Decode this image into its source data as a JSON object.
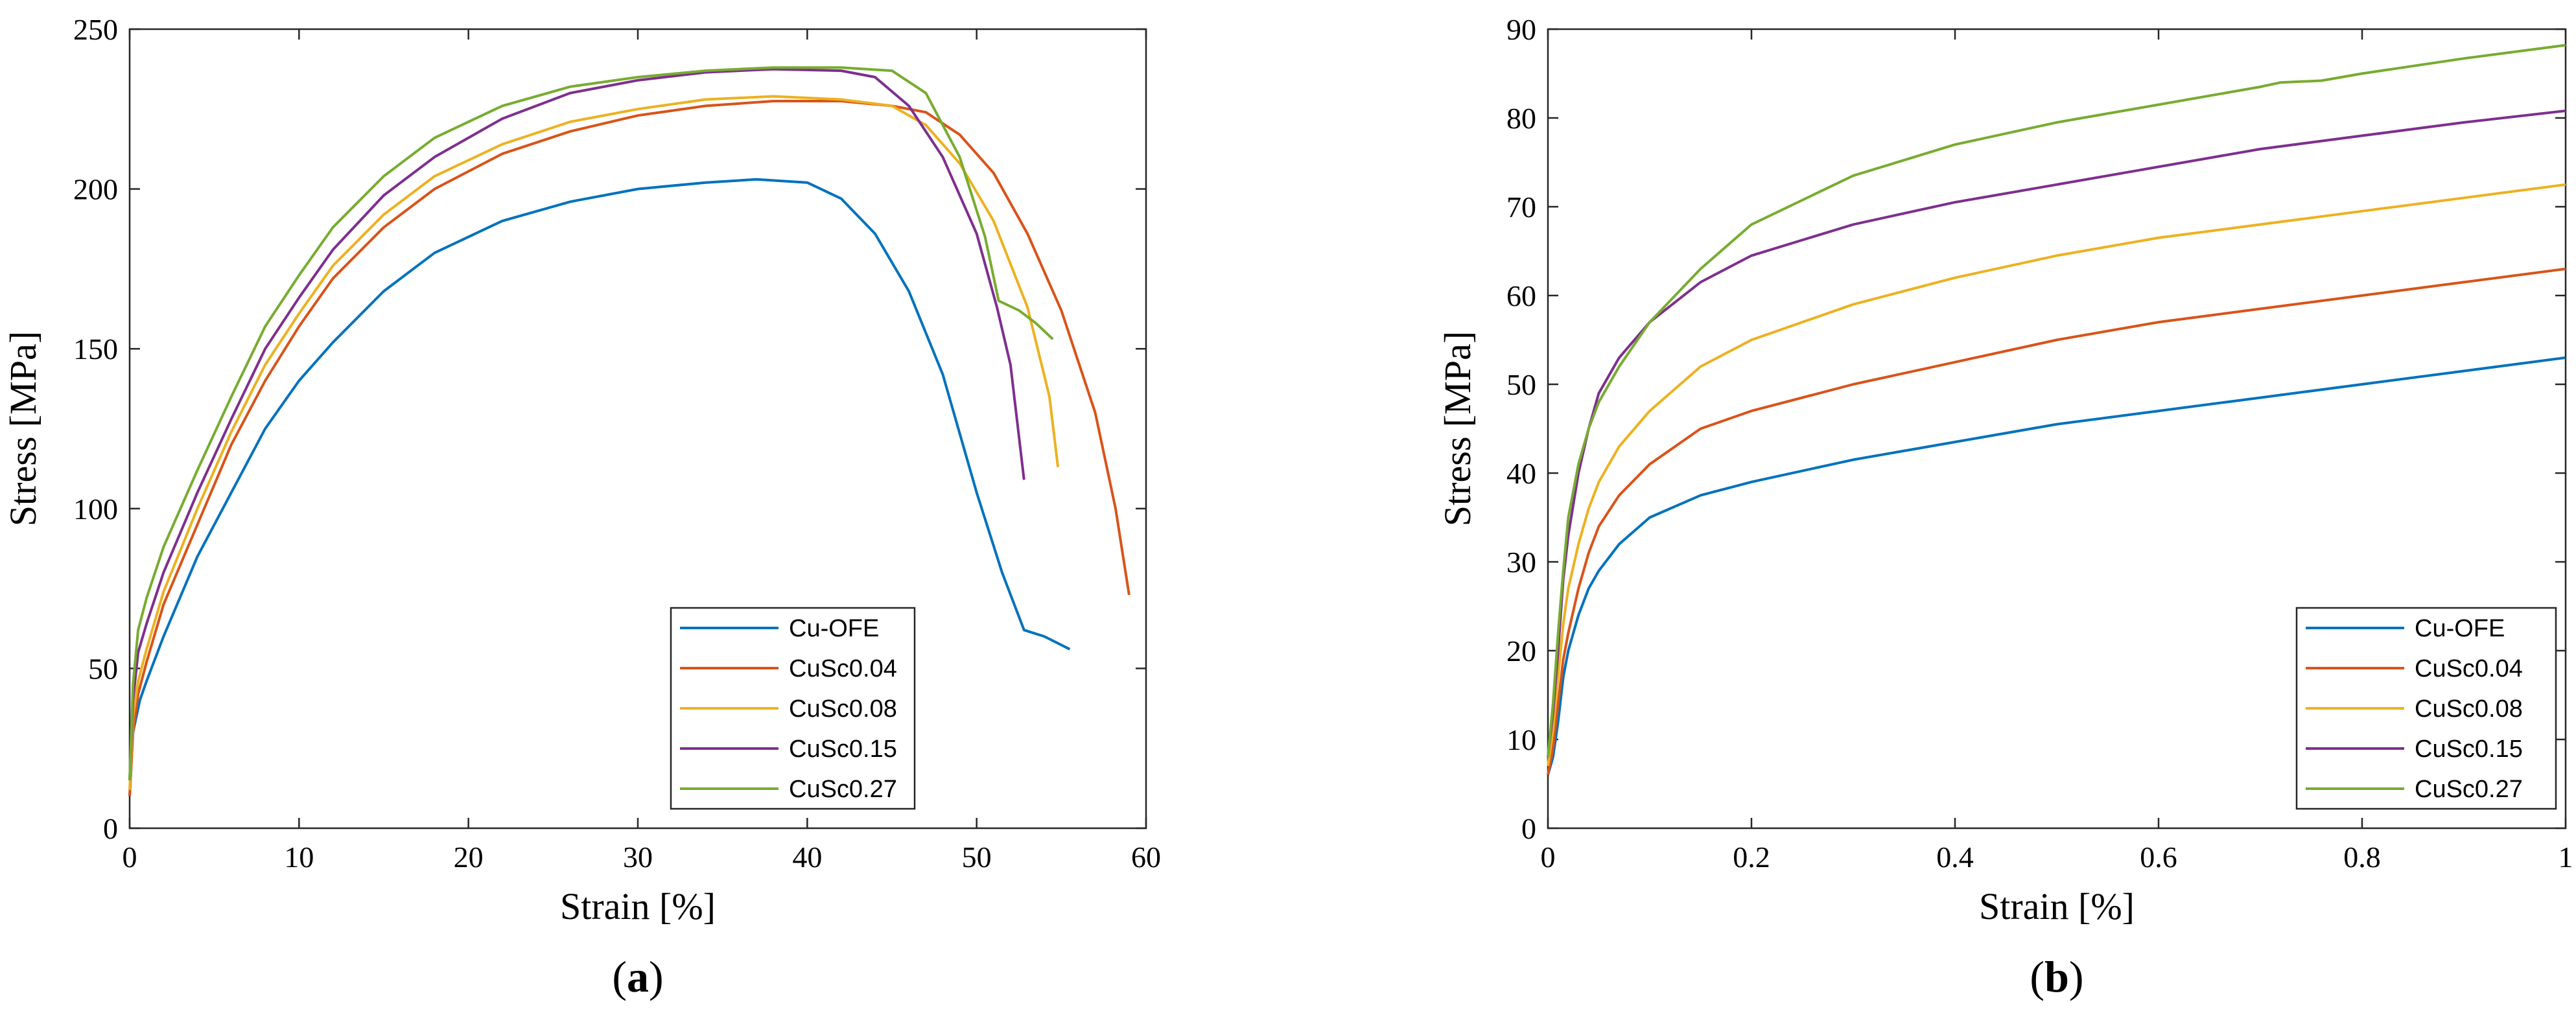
{
  "colors": {
    "Cu-OFE": "#0072BD",
    "CuSc0.04": "#D95319",
    "CuSc0.08": "#EDB120",
    "CuSc0.15": "#7E2F8E",
    "CuSc0.27": "#77AC30"
  },
  "chart_data": [
    {
      "id": "a",
      "type": "line",
      "caption_open": "(",
      "caption_letter": "a",
      "caption_close": ")",
      "xlabel": "Strain [%]",
      "ylabel": "Stress  [MPa]",
      "xlim": [
        0,
        60
      ],
      "ylim": [
        0,
        250
      ],
      "xticks": [
        0,
        10,
        20,
        30,
        40,
        50,
        60
      ],
      "yticks": [
        0,
        50,
        100,
        150,
        200,
        250
      ],
      "legend_position": "bottom-right",
      "series": [
        {
          "name": "Cu-OFE",
          "points": [
            [
              0,
              10
            ],
            [
              0.2,
              30
            ],
            [
              0.6,
              40
            ],
            [
              1,
              46
            ],
            [
              2,
              60
            ],
            [
              4,
              85
            ],
            [
              6,
              105
            ],
            [
              8,
              125
            ],
            [
              10,
              140
            ],
            [
              12,
              152
            ],
            [
              15,
              168
            ],
            [
              18,
              180
            ],
            [
              22,
              190
            ],
            [
              26,
              196
            ],
            [
              30,
              200
            ],
            [
              34,
              202
            ],
            [
              37,
              203
            ],
            [
              40,
              202
            ],
            [
              42,
              197
            ],
            [
              44,
              186
            ],
            [
              46,
              168
            ],
            [
              48,
              142
            ],
            [
              50,
              105
            ],
            [
              51.5,
              80
            ],
            [
              52.8,
              62
            ],
            [
              54,
              60
            ],
            [
              55.5,
              56
            ]
          ]
        },
        {
          "name": "CuSc0.04",
          "points": [
            [
              0,
              10
            ],
            [
              0.2,
              30
            ],
            [
              0.5,
              42
            ],
            [
              1,
              52
            ],
            [
              2,
              70
            ],
            [
              4,
              95
            ],
            [
              6,
              120
            ],
            [
              8,
              140
            ],
            [
              10,
              157
            ],
            [
              12,
              172
            ],
            [
              15,
              188
            ],
            [
              18,
              200
            ],
            [
              22,
              211
            ],
            [
              26,
              218
            ],
            [
              30,
              223
            ],
            [
              34,
              226
            ],
            [
              38,
              227.5
            ],
            [
              42,
              227.5
            ],
            [
              45,
              226
            ],
            [
              47,
              224
            ],
            [
              49,
              217
            ],
            [
              51,
              205
            ],
            [
              53,
              186
            ],
            [
              55,
              162
            ],
            [
              57,
              130
            ],
            [
              58.2,
              100
            ],
            [
              59,
              73
            ]
          ]
        },
        {
          "name": "CuSc0.08",
          "points": [
            [
              0,
              12
            ],
            [
              0.2,
              35
            ],
            [
              0.5,
              46
            ],
            [
              1,
              56
            ],
            [
              2,
              74
            ],
            [
              4,
              100
            ],
            [
              6,
              124
            ],
            [
              8,
              145
            ],
            [
              10,
              161
            ],
            [
              12,
              176
            ],
            [
              15,
              192
            ],
            [
              18,
              204
            ],
            [
              22,
              214
            ],
            [
              26,
              221
            ],
            [
              30,
              225
            ],
            [
              34,
              228
            ],
            [
              38,
              229
            ],
            [
              42,
              228
            ],
            [
              45,
              226
            ],
            [
              47,
              220
            ],
            [
              49,
              208
            ],
            [
              51,
              190
            ],
            [
              53,
              163
            ],
            [
              54.3,
              135
            ],
            [
              54.8,
              113
            ]
          ]
        },
        {
          "name": "CuSc0.15",
          "points": [
            [
              0,
              15
            ],
            [
              0.2,
              40
            ],
            [
              0.5,
              55
            ],
            [
              1,
              64
            ],
            [
              2,
              80
            ],
            [
              4,
              105
            ],
            [
              6,
              128
            ],
            [
              8,
              150
            ],
            [
              10,
              166
            ],
            [
              12,
              181
            ],
            [
              15,
              198
            ],
            [
              18,
              210
            ],
            [
              22,
              222
            ],
            [
              26,
              230
            ],
            [
              30,
              234
            ],
            [
              34,
              236.5
            ],
            [
              38,
              237.5
            ],
            [
              42,
              237
            ],
            [
              44,
              235
            ],
            [
              46,
              226
            ],
            [
              48,
              210
            ],
            [
              50,
              186
            ],
            [
              51.2,
              163
            ],
            [
              52,
              145
            ],
            [
              52.8,
              109
            ]
          ]
        },
        {
          "name": "CuSc0.27",
          "points": [
            [
              0,
              15
            ],
            [
              0.2,
              45
            ],
            [
              0.5,
              62
            ],
            [
              1,
              72
            ],
            [
              2,
              88
            ],
            [
              4,
              112
            ],
            [
              6,
              135
            ],
            [
              8,
              157
            ],
            [
              10,
              173
            ],
            [
              12,
              188
            ],
            [
              15,
              204
            ],
            [
              18,
              216
            ],
            [
              22,
              226
            ],
            [
              26,
              232
            ],
            [
              30,
              235
            ],
            [
              34,
              237
            ],
            [
              38,
              238
            ],
            [
              42,
              238
            ],
            [
              45,
              237
            ],
            [
              47,
              230
            ],
            [
              49,
              210
            ],
            [
              50.5,
              185
            ],
            [
              51.3,
              165
            ],
            [
              52.5,
              162
            ],
            [
              53.5,
              158
            ],
            [
              54.5,
              153
            ]
          ]
        }
      ]
    },
    {
      "id": "b",
      "type": "line",
      "caption_open": "(",
      "caption_letter": "b",
      "caption_close": ")",
      "xlabel": "Strain [%]",
      "ylabel": "Stress [MPa]",
      "xlim": [
        0,
        1
      ],
      "ylim": [
        0,
        90
      ],
      "xticks": [
        0,
        0.2,
        0.4,
        0.6,
        0.8,
        1
      ],
      "xtick_labels": [
        "0",
        "0.2",
        "0.4",
        "0.6",
        "0.8",
        "1"
      ],
      "yticks": [
        0,
        10,
        20,
        30,
        40,
        50,
        60,
        70,
        80,
        90
      ],
      "legend_position": "bottom-right",
      "series": [
        {
          "name": "Cu-OFE",
          "points": [
            [
              0,
              6
            ],
            [
              0.005,
              8
            ],
            [
              0.01,
              12
            ],
            [
              0.015,
              17
            ],
            [
              0.02,
              20
            ],
            [
              0.03,
              24
            ],
            [
              0.04,
              27
            ],
            [
              0.05,
              29
            ],
            [
              0.07,
              32
            ],
            [
              0.1,
              35
            ],
            [
              0.15,
              37.5
            ],
            [
              0.2,
              39
            ],
            [
              0.3,
              41.5
            ],
            [
              0.4,
              43.5
            ],
            [
              0.5,
              45.5
            ],
            [
              0.6,
              47
            ],
            [
              0.7,
              48.5
            ],
            [
              0.8,
              50
            ],
            [
              0.9,
              51.5
            ],
            [
              1.0,
              53
            ]
          ]
        },
        {
          "name": "CuSc0.04",
          "points": [
            [
              0,
              6
            ],
            [
              0.005,
              9
            ],
            [
              0.01,
              14
            ],
            [
              0.015,
              19
            ],
            [
              0.02,
              22
            ],
            [
              0.03,
              27
            ],
            [
              0.04,
              31
            ],
            [
              0.05,
              34
            ],
            [
              0.07,
              37.5
            ],
            [
              0.1,
              41
            ],
            [
              0.15,
              45
            ],
            [
              0.2,
              47
            ],
            [
              0.3,
              50
            ],
            [
              0.4,
              52.5
            ],
            [
              0.5,
              55
            ],
            [
              0.6,
              57
            ],
            [
              0.7,
              58.5
            ],
            [
              0.8,
              60
            ],
            [
              0.9,
              61.5
            ],
            [
              1.0,
              63
            ]
          ]
        },
        {
          "name": "CuSc0.08",
          "points": [
            [
              0,
              7
            ],
            [
              0.005,
              11
            ],
            [
              0.01,
              17
            ],
            [
              0.015,
              23
            ],
            [
              0.02,
              27
            ],
            [
              0.03,
              32
            ],
            [
              0.04,
              36
            ],
            [
              0.05,
              39
            ],
            [
              0.07,
              43
            ],
            [
              0.1,
              47
            ],
            [
              0.15,
              52
            ],
            [
              0.2,
              55
            ],
            [
              0.3,
              59
            ],
            [
              0.4,
              62
            ],
            [
              0.5,
              64.5
            ],
            [
              0.6,
              66.5
            ],
            [
              0.7,
              68
            ],
            [
              0.8,
              69.5
            ],
            [
              0.9,
              71
            ],
            [
              1.0,
              72.5
            ]
          ]
        },
        {
          "name": "CuSc0.15",
          "points": [
            [
              0,
              8
            ],
            [
              0.005,
              13
            ],
            [
              0.01,
              20
            ],
            [
              0.015,
              28
            ],
            [
              0.02,
              33
            ],
            [
              0.03,
              40
            ],
            [
              0.04,
              45
            ],
            [
              0.05,
              49
            ],
            [
              0.07,
              53
            ],
            [
              0.1,
              57
            ],
            [
              0.15,
              61.5
            ],
            [
              0.2,
              64.5
            ],
            [
              0.3,
              68
            ],
            [
              0.4,
              70.5
            ],
            [
              0.5,
              72.5
            ],
            [
              0.6,
              74.5
            ],
            [
              0.7,
              76.5
            ],
            [
              0.8,
              78
            ],
            [
              0.9,
              79.5
            ],
            [
              1.0,
              80.8
            ]
          ]
        },
        {
          "name": "CuSc0.27",
          "points": [
            [
              0,
              8
            ],
            [
              0.005,
              14
            ],
            [
              0.01,
              22
            ],
            [
              0.015,
              29
            ],
            [
              0.02,
              35
            ],
            [
              0.03,
              41
            ],
            [
              0.04,
              45
            ],
            [
              0.05,
              48
            ],
            [
              0.07,
              52
            ],
            [
              0.1,
              57
            ],
            [
              0.15,
              63
            ],
            [
              0.2,
              68
            ],
            [
              0.3,
              73.5
            ],
            [
              0.4,
              77
            ],
            [
              0.5,
              79.5
            ],
            [
              0.6,
              81.5
            ],
            [
              0.7,
              83.5
            ],
            [
              0.72,
              84
            ],
            [
              0.76,
              84.2
            ],
            [
              0.8,
              85
            ],
            [
              0.9,
              86.7
            ],
            [
              1.0,
              88.2
            ]
          ]
        }
      ]
    }
  ]
}
